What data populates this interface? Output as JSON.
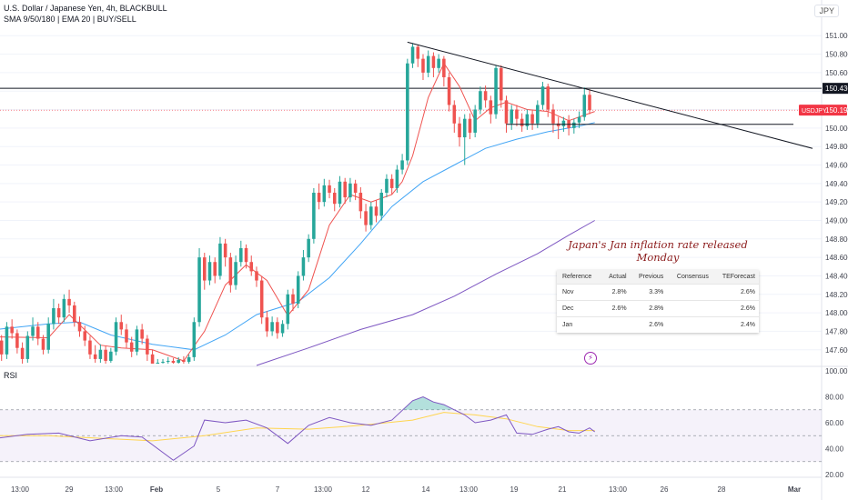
{
  "header": {
    "title": "U.S. Dollar / Japanese Yen, 4h, BLACKBULL",
    "indicators": "SMA 9/50/180 | EMA 20 | BUY/SELL",
    "currency": "JPY"
  },
  "rsi": {
    "label": "RSI"
  },
  "overlay": {
    "title": "Japan's Jan inflation rate released Monday",
    "columns": [
      "Reference",
      "Actual",
      "Previous",
      "Consensus",
      "TEForecast"
    ],
    "rows": [
      [
        "Nov",
        "2.8%",
        "3.3%",
        "",
        "2.6%"
      ],
      [
        "Dec",
        "2.6%",
        "2.8%",
        "",
        "2.6%"
      ],
      [
        "Jan",
        "",
        "2.6%",
        "",
        "2.4%"
      ]
    ]
  },
  "colors": {
    "up": "#26a69a",
    "down": "#ef5350",
    "sma9": "#ef5350",
    "sma50": "#42a5f5",
    "sma180": "#7e57c2",
    "rsi": "#7e57c2",
    "rsi_ma": "#ffd54f",
    "price_badge": "#f23645",
    "level_badge": "#131722"
  },
  "chart_data": [
    {
      "type": "candlestick",
      "symbol": "USDJPY",
      "ylim": [
        147.45,
        151.15
      ],
      "y_ticks": [
        "151.000",
        "150.800",
        "150.600",
        "150.400",
        "150.200",
        "150.000",
        "149.800",
        "149.600",
        "149.400",
        "149.200",
        "149.000",
        "148.800",
        "148.600",
        "148.400",
        "148.200",
        "148.000",
        "147.800",
        "147.600"
      ],
      "x_ticks": [
        "13:00",
        "29",
        "13:00",
        "Feb",
        "5",
        "7",
        "13:00",
        "12",
        "14",
        "13:00",
        "19",
        "21",
        "13:00",
        "26",
        "28",
        "Mar"
      ],
      "last_price": {
        "label": "USDJPY",
        "value": "150.194"
      },
      "horizontal_level": {
        "value": "150.430"
      },
      "support_level": 150.04,
      "trendline": {
        "from": [
          0,
          150.9
        ],
        "to": [
          1,
          149.78
        ]
      },
      "candles": [
        [
          147.8,
          147.7,
          147.88,
          147.62
        ],
        [
          147.7,
          147.55,
          147.76,
          147.48
        ],
        [
          147.55,
          147.85,
          147.9,
          147.5
        ],
        [
          147.85,
          147.78,
          147.93,
          147.72
        ],
        [
          147.78,
          147.62,
          147.82,
          147.56
        ],
        [
          147.62,
          147.5,
          147.68,
          147.45
        ],
        [
          147.5,
          147.75,
          147.8,
          147.46
        ],
        [
          147.75,
          147.85,
          147.95,
          147.7
        ],
        [
          147.85,
          147.72,
          147.9,
          147.65
        ],
        [
          147.72,
          147.6,
          147.76,
          147.55
        ],
        [
          147.6,
          147.88,
          147.95,
          147.56
        ],
        [
          147.88,
          148.05,
          148.15,
          147.82
        ],
        [
          148.05,
          147.95,
          148.1,
          147.88
        ],
        [
          147.95,
          148.15,
          148.2,
          147.9
        ],
        [
          148.15,
          148.08,
          148.25,
          148.0
        ],
        [
          148.08,
          147.9,
          148.12,
          147.85
        ],
        [
          147.9,
          147.8,
          147.96,
          147.74
        ],
        [
          147.8,
          147.7,
          147.86,
          147.64
        ],
        [
          147.7,
          147.55,
          147.75,
          147.5
        ],
        [
          147.55,
          147.5,
          147.65,
          147.46
        ],
        [
          147.5,
          147.6,
          147.66,
          147.46
        ],
        [
          147.6,
          147.48,
          147.64,
          147.45
        ],
        [
          147.48,
          147.58,
          147.62,
          147.46
        ],
        [
          147.58,
          147.9,
          147.95,
          147.54
        ],
        [
          147.9,
          147.82,
          147.98,
          147.76
        ],
        [
          147.82,
          147.68,
          147.88,
          147.62
        ],
        [
          147.68,
          147.58,
          147.74,
          147.52
        ],
        [
          147.58,
          147.82,
          147.86,
          147.54
        ],
        [
          147.82,
          147.72,
          147.88,
          147.66
        ],
        [
          147.72,
          147.55,
          147.76,
          147.48
        ],
        [
          147.55,
          147.45,
          147.6,
          147.45
        ],
        [
          147.45,
          147.46,
          147.5,
          147.45
        ],
        [
          147.46,
          147.47,
          147.5,
          147.45
        ],
        [
          147.47,
          147.48,
          147.52,
          147.45
        ],
        [
          147.48,
          147.46,
          147.51,
          147.45
        ],
        [
          147.46,
          147.49,
          147.52,
          147.45
        ],
        [
          147.49,
          147.47,
          147.53,
          147.45
        ],
        [
          147.47,
          147.52,
          147.55,
          147.45
        ],
        [
          147.52,
          147.9,
          147.95,
          147.48
        ],
        [
          147.9,
          148.6,
          148.7,
          147.85
        ],
        [
          148.6,
          148.35,
          148.65,
          148.25
        ],
        [
          148.35,
          148.55,
          148.62,
          148.3
        ],
        [
          148.55,
          148.4,
          148.6,
          148.32
        ],
        [
          148.4,
          148.75,
          148.82,
          148.36
        ],
        [
          148.75,
          148.6,
          148.8,
          148.5
        ],
        [
          148.6,
          148.3,
          148.65,
          148.22
        ],
        [
          148.3,
          148.55,
          148.62,
          148.25
        ],
        [
          148.55,
          148.7,
          148.78,
          148.5
        ],
        [
          148.7,
          148.55,
          148.74,
          148.48
        ],
        [
          148.55,
          148.45,
          148.62,
          148.4
        ],
        [
          148.45,
          148.35,
          148.5,
          148.28
        ],
        [
          148.35,
          147.95,
          148.4,
          147.88
        ],
        [
          147.95,
          147.8,
          148.02,
          147.74
        ],
        [
          147.8,
          147.9,
          147.96,
          147.75
        ],
        [
          147.9,
          147.78,
          147.95,
          147.72
        ],
        [
          147.78,
          147.88,
          147.92,
          147.74
        ],
        [
          147.88,
          148.2,
          148.25,
          147.82
        ],
        [
          148.2,
          148.1,
          148.26,
          148.02
        ],
        [
          148.1,
          148.4,
          148.45,
          148.05
        ],
        [
          148.4,
          148.6,
          148.68,
          148.35
        ],
        [
          148.6,
          148.8,
          148.85,
          148.55
        ],
        [
          148.8,
          149.3,
          149.35,
          148.75
        ],
        [
          149.3,
          149.2,
          149.4,
          149.12
        ],
        [
          149.2,
          149.38,
          149.45,
          149.15
        ],
        [
          149.38,
          149.3,
          149.44,
          149.24
        ],
        [
          149.3,
          149.18,
          149.35,
          149.1
        ],
        [
          149.18,
          149.42,
          149.48,
          149.14
        ],
        [
          149.42,
          149.25,
          149.46,
          149.18
        ],
        [
          149.25,
          149.4,
          149.46,
          149.2
        ],
        [
          149.4,
          149.3,
          149.44,
          149.22
        ],
        [
          149.3,
          149.1,
          149.36,
          149.02
        ],
        [
          149.1,
          148.95,
          149.18,
          148.88
        ],
        [
          148.95,
          149.15,
          149.2,
          148.9
        ],
        [
          149.15,
          149.05,
          149.22,
          148.98
        ],
        [
          149.05,
          149.3,
          149.34,
          149.0
        ],
        [
          149.3,
          149.45,
          149.5,
          149.25
        ],
        [
          149.45,
          149.35,
          149.5,
          149.28
        ],
        [
          149.35,
          149.55,
          149.6,
          149.3
        ],
        [
          149.55,
          149.65,
          149.72,
          149.5
        ],
        [
          149.65,
          150.7,
          150.75,
          149.6
        ],
        [
          150.7,
          150.88,
          150.92,
          150.65
        ],
        [
          150.88,
          150.75,
          150.9,
          150.66
        ],
        [
          150.75,
          150.6,
          150.8,
          150.52
        ],
        [
          150.6,
          150.78,
          150.84,
          150.55
        ],
        [
          150.78,
          150.65,
          150.82,
          150.55
        ],
        [
          150.65,
          150.75,
          150.8,
          150.6
        ],
        [
          150.75,
          150.55,
          150.78,
          150.45
        ],
        [
          150.55,
          150.25,
          150.6,
          150.18
        ],
        [
          150.25,
          150.05,
          150.3,
          149.95
        ],
        [
          150.05,
          149.9,
          150.12,
          149.8
        ],
        [
          149.9,
          150.1,
          150.15,
          149.6
        ],
        [
          150.1,
          149.95,
          150.16,
          149.88
        ],
        [
          149.95,
          150.2,
          150.25,
          149.9
        ],
        [
          150.2,
          150.4,
          150.45,
          150.15
        ],
        [
          150.4,
          150.3,
          150.46,
          150.22
        ],
        [
          150.3,
          150.15,
          150.35,
          150.05
        ],
        [
          150.15,
          150.65,
          150.68,
          150.1
        ],
        [
          150.65,
          150.3,
          150.68,
          150.22
        ],
        [
          150.3,
          150.05,
          150.35,
          149.95
        ],
        [
          150.05,
          150.2,
          150.25,
          149.98
        ],
        [
          150.2,
          150.1,
          150.25,
          150.02
        ],
        [
          150.1,
          150.02,
          150.16,
          149.96
        ],
        [
          150.02,
          150.15,
          150.2,
          149.98
        ],
        [
          150.15,
          150.05,
          150.2,
          149.98
        ],
        [
          150.05,
          150.25,
          150.3,
          150.0
        ],
        [
          150.25,
          150.45,
          150.5,
          150.2
        ],
        [
          150.45,
          150.2,
          150.48,
          150.12
        ],
        [
          150.2,
          150.05,
          150.26,
          149.95
        ],
        [
          150.05,
          150.02,
          150.12,
          149.88
        ],
        [
          150.02,
          150.08,
          150.12,
          149.96
        ],
        [
          150.08,
          150.0,
          150.14,
          149.92
        ],
        [
          150.0,
          150.06,
          150.1,
          149.94
        ],
        [
          150.06,
          150.12,
          150.18,
          150.0
        ],
        [
          150.12,
          150.36,
          150.44,
          150.08
        ],
        [
          150.36,
          150.194,
          150.42,
          150.15
        ]
      ],
      "sma9": [
        [
          0,
          147.74
        ],
        [
          10,
          147.73
        ],
        [
          14,
          147.98
        ],
        [
          20,
          147.65
        ],
        [
          24,
          147.62
        ],
        [
          30,
          147.6
        ],
        [
          36,
          147.48
        ],
        [
          40,
          147.8
        ],
        [
          44,
          148.3
        ],
        [
          48,
          148.52
        ],
        [
          52,
          148.35
        ],
        [
          56,
          147.97
        ],
        [
          60,
          148.25
        ],
        [
          64,
          148.95
        ],
        [
          68,
          149.28
        ],
        [
          72,
          149.2
        ],
        [
          76,
          149.28
        ],
        [
          78,
          149.42
        ],
        [
          80,
          149.7
        ],
        [
          83,
          150.33
        ],
        [
          86,
          150.7
        ],
        [
          89,
          150.45
        ],
        [
          92,
          150.08
        ],
        [
          95,
          150.22
        ],
        [
          98,
          150.28
        ],
        [
          102,
          150.2
        ],
        [
          106,
          150.18
        ],
        [
          110,
          150.08
        ],
        [
          115,
          150.18
        ]
      ],
      "sma50": [
        [
          0,
          147.82
        ],
        [
          10,
          147.88
        ],
        [
          16,
          147.9
        ],
        [
          22,
          147.76
        ],
        [
          30,
          147.66
        ],
        [
          38,
          147.6
        ],
        [
          44,
          147.76
        ],
        [
          50,
          147.98
        ],
        [
          58,
          148.12
        ],
        [
          64,
          148.38
        ],
        [
          70,
          148.75
        ],
        [
          76,
          149.15
        ],
        [
          82,
          149.42
        ],
        [
          88,
          149.6
        ],
        [
          94,
          149.78
        ],
        [
          100,
          149.88
        ],
        [
          106,
          149.96
        ],
        [
          112,
          150.02
        ],
        [
          115,
          150.06
        ]
      ],
      "sma180": [
        [
          50,
          147.43
        ],
        [
          60,
          147.62
        ],
        [
          70,
          147.82
        ],
        [
          80,
          147.98
        ],
        [
          88,
          148.18
        ],
        [
          96,
          148.42
        ],
        [
          104,
          148.64
        ],
        [
          110,
          148.84
        ],
        [
          115,
          149.0
        ]
      ]
    },
    {
      "type": "line",
      "name": "RSI",
      "ylim": [
        20,
        100
      ],
      "y_ticks": [
        "100.00",
        "80.00",
        "60.00",
        "40.00",
        "20.00"
      ],
      "band": [
        30,
        70
      ],
      "rsi": [
        [
          0,
          48
        ],
        [
          6,
          51
        ],
        [
          12,
          52
        ],
        [
          18,
          46
        ],
        [
          24,
          50
        ],
        [
          28,
          49
        ],
        [
          34,
          31
        ],
        [
          38,
          42
        ],
        [
          40,
          62
        ],
        [
          44,
          60
        ],
        [
          48,
          62
        ],
        [
          52,
          56
        ],
        [
          56,
          44
        ],
        [
          60,
          58
        ],
        [
          64,
          64
        ],
        [
          68,
          60
        ],
        [
          72,
          58
        ],
        [
          76,
          62
        ],
        [
          80,
          77
        ],
        [
          82,
          80
        ],
        [
          84,
          76
        ],
        [
          86,
          74
        ],
        [
          88,
          70
        ],
        [
          90,
          66
        ],
        [
          92,
          60
        ],
        [
          95,
          62
        ],
        [
          98,
          66
        ],
        [
          100,
          52
        ],
        [
          103,
          51
        ],
        [
          106,
          55
        ],
        [
          108,
          57
        ],
        [
          110,
          53
        ],
        [
          112,
          52
        ],
        [
          114,
          56
        ],
        [
          115,
          53
        ]
      ],
      "rsi_ma": [
        [
          0,
          50
        ],
        [
          10,
          50
        ],
        [
          20,
          48
        ],
        [
          30,
          46
        ],
        [
          40,
          50
        ],
        [
          50,
          56
        ],
        [
          60,
          55
        ],
        [
          70,
          58
        ],
        [
          80,
          62
        ],
        [
          86,
          68
        ],
        [
          92,
          66
        ],
        [
          98,
          63
        ],
        [
          104,
          57
        ],
        [
          110,
          54
        ],
        [
          115,
          54
        ]
      ]
    }
  ]
}
